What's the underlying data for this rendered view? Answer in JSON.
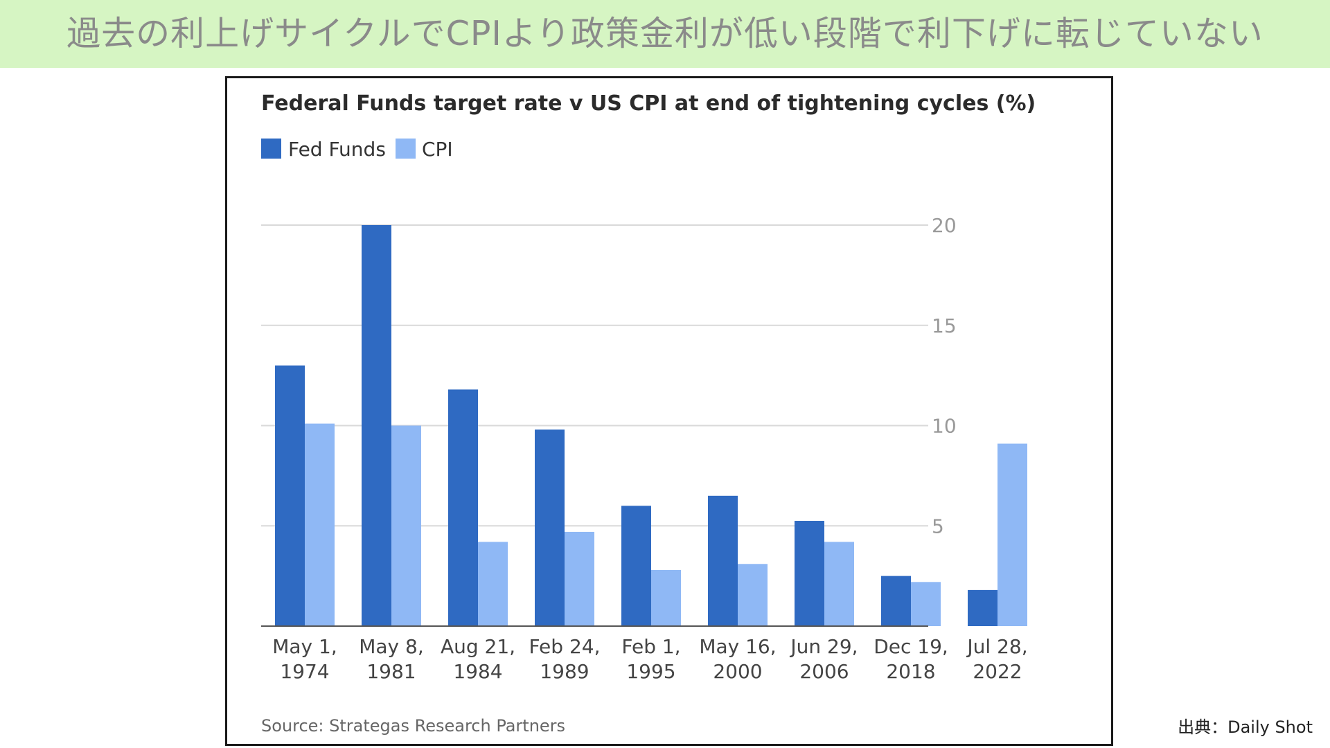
{
  "banner": {
    "text": "過去の利上げサイクルでCPIより政策金利が低い段階で利下げに転じていない",
    "background": "#d6f5c3",
    "text_color": "#8a8a8a"
  },
  "credit": "出典：Daily Shot",
  "chart_data": {
    "type": "bar",
    "title": "Federal Funds target rate v US CPI at end of tightening cycles (%)",
    "source": "Source: Strategas Research Partners",
    "categories": [
      [
        "May 1,",
        "1974"
      ],
      [
        "May 8,",
        "1981"
      ],
      [
        "Aug 21,",
        "1984"
      ],
      [
        "Feb 24,",
        "1989"
      ],
      [
        "Feb 1,",
        "1995"
      ],
      [
        "May 16,",
        "2000"
      ],
      [
        "Jun 29,",
        "2006"
      ],
      [
        "Dec 19,",
        "2018"
      ],
      [
        "Jul 28,",
        "2022"
      ]
    ],
    "series": [
      {
        "name": "Fed Funds",
        "color": "#2f6ac2",
        "values": [
          13.0,
          20.0,
          11.8,
          9.8,
          6.0,
          6.5,
          5.25,
          2.5,
          1.8
        ]
      },
      {
        "name": "CPI",
        "color": "#8fb8f5",
        "values": [
          10.1,
          10.0,
          4.2,
          4.7,
          2.8,
          3.1,
          4.2,
          2.2,
          9.1
        ]
      }
    ],
    "ylim": [
      0,
      20
    ],
    "yticks": [
      "5",
      "10",
      "15",
      "20"
    ],
    "ytick_values": [
      5,
      10,
      15,
      20
    ],
    "y_axis_side": "right",
    "grid": true,
    "legend_position": "top-left"
  }
}
